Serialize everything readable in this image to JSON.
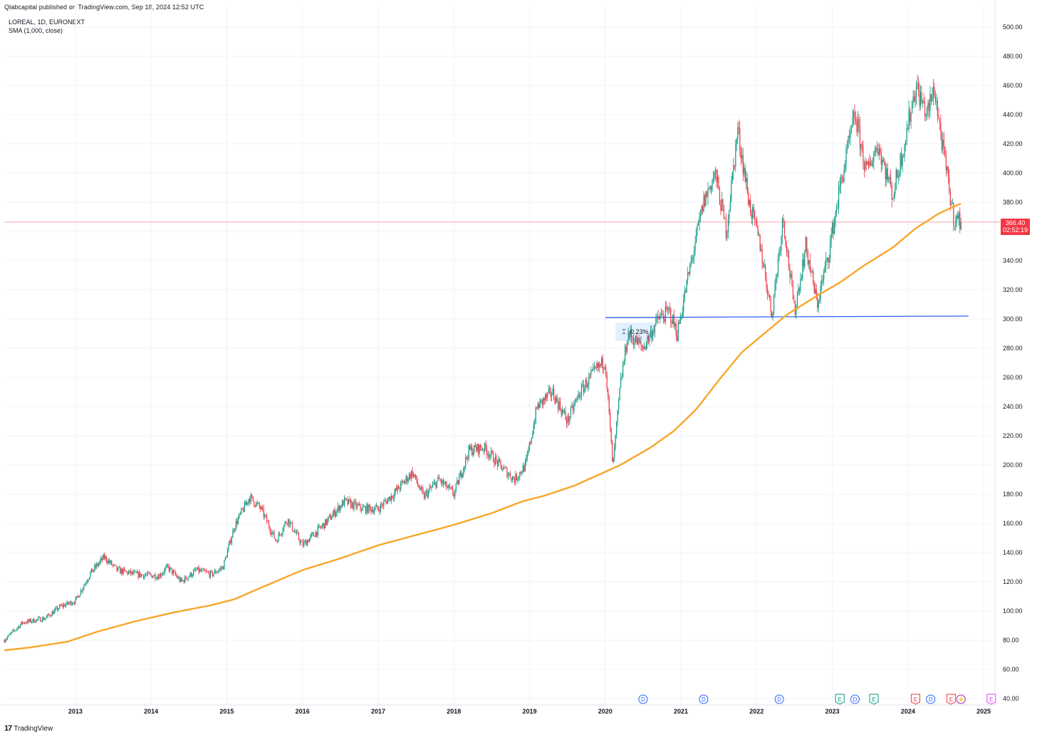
{
  "header": {
    "publish_line": "Qlabcapital published on TradingView.com, Sep 18, 2024 12:52 UTC",
    "symbol_line": "LOREAL, 1D, EURONEXT",
    "indicator_line": "SMA (1,000, close)"
  },
  "brand": {
    "logo": "17",
    "name": "TradingView"
  },
  "price_tag": {
    "price": "366.40",
    "countdown": "02:52:19"
  },
  "measure": {
    "icon": "measure-icon",
    "value": "0.23%"
  },
  "colors": {
    "up": "#089981",
    "down": "#f23645",
    "sma": "#f7a62a",
    "support": "#2962ff",
    "grid": "#f0f3fa",
    "axis_text": "#131722",
    "last_price_line": "#f7a3aa"
  },
  "chart_data": {
    "type": "line",
    "title": "LOREAL, 1D, EURONEXT",
    "xlabel": "",
    "ylabel": "",
    "x_ticks": [
      "2013",
      "2014",
      "2015",
      "2016",
      "2017",
      "2018",
      "2019",
      "2020",
      "2021",
      "2022",
      "2023",
      "2024",
      "2025"
    ],
    "y_ticks": [
      "500.00",
      "480.00",
      "460.00",
      "440.00",
      "420.00",
      "400.00",
      "380.00",
      "360.00",
      "340.00",
      "320.00",
      "300.00",
      "280.00",
      "260.00",
      "240.00",
      "220.00",
      "200.00",
      "180.00",
      "160.00",
      "140.00",
      "120.00",
      "100.00",
      "80.00",
      "60.00",
      "40.00"
    ],
    "xlim": [
      2012.06,
      2025.14
    ],
    "ylim": [
      40,
      510
    ],
    "grid": true,
    "series": [
      {
        "name": "LOREAL close (approx.)",
        "x": [
          2012.06,
          2012.3,
          2012.6,
          2012.8,
          2013.0,
          2013.2,
          2013.38,
          2013.55,
          2013.8,
          2014.1,
          2014.22,
          2014.4,
          2014.6,
          2014.8,
          2014.95,
          2015.1,
          2015.3,
          2015.45,
          2015.65,
          2015.8,
          2016.0,
          2016.3,
          2016.55,
          2016.8,
          2017.0,
          2017.2,
          2017.45,
          2017.6,
          2017.8,
          2018.0,
          2018.2,
          2018.4,
          2018.6,
          2018.8,
          2018.95,
          2019.1,
          2019.3,
          2019.5,
          2019.65,
          2019.8,
          2020.0,
          2020.1,
          2020.2,
          2020.3,
          2020.5,
          2020.7,
          2020.85,
          2020.95,
          2021.1,
          2021.3,
          2021.45,
          2021.6,
          2021.75,
          2021.9,
          2022.05,
          2022.2,
          2022.35,
          2022.5,
          2022.65,
          2022.8,
          2022.95,
          2023.1,
          2023.3,
          2023.45,
          2023.6,
          2023.8,
          2023.95,
          2024.1,
          2024.25,
          2024.35,
          2024.45,
          2024.6,
          2024.7
        ],
        "values": [
          80,
          92,
          95,
          103,
          107,
          126,
          137,
          128,
          125,
          124,
          130,
          120,
          128,
          125,
          130,
          158,
          178,
          170,
          148,
          163,
          145,
          160,
          175,
          170,
          170,
          180,
          195,
          178,
          190,
          180,
          210,
          212,
          200,
          190,
          200,
          240,
          250,
          230,
          248,
          260,
          272,
          198,
          255,
          290,
          280,
          300,
          305,
          290,
          330,
          380,
          400,
          360,
          430,
          380,
          350,
          303,
          370,
          305,
          350,
          310,
          345,
          390,
          440,
          400,
          420,
          385,
          420,
          460,
          440,
          458,
          420,
          370,
          366.4
        ]
      },
      {
        "name": "SMA (1,000, close)",
        "x": [
          2012.06,
          2012.4,
          2012.9,
          2013.3,
          2013.8,
          2014.3,
          2014.8,
          2015.1,
          2015.5,
          2016.0,
          2016.5,
          2017.0,
          2017.5,
          2018.0,
          2018.5,
          2018.9,
          2019.2,
          2019.6,
          2019.9,
          2020.2,
          2020.6,
          2020.9,
          2021.2,
          2021.5,
          2021.8,
          2022.1,
          2022.4,
          2022.8,
          2023.1,
          2023.4,
          2023.8,
          2024.1,
          2024.4,
          2024.6,
          2024.7
        ],
        "values": [
          73,
          75,
          79,
          86,
          93,
          99,
          104,
          108,
          117,
          128,
          136,
          145,
          152,
          159,
          167,
          175,
          179,
          186,
          193,
          200,
          212,
          223,
          238,
          258,
          277,
          290,
          303,
          316,
          325,
          336,
          349,
          362,
          372,
          377,
          379
        ]
      },
      {
        "name": "Support line",
        "x": [
          2020.0,
          2024.8
        ],
        "values": [
          301,
          302
        ]
      }
    ],
    "last_price": 366.4,
    "events": [
      {
        "label": "D",
        "x": 2020.5
      },
      {
        "label": "D",
        "x": 2021.3
      },
      {
        "label": "D",
        "x": 2022.3
      },
      {
        "label": "E",
        "x": 2023.1
      },
      {
        "label": "D",
        "x": 2023.3
      },
      {
        "label": "E",
        "x": 2023.55
      },
      {
        "label": "E",
        "x": 2024.1
      },
      {
        "label": "D",
        "x": 2024.3
      },
      {
        "label": "E",
        "x": 2024.57
      },
      {
        "label": "⚡",
        "x": 2024.7
      },
      {
        "label": "E",
        "x": 2025.1
      }
    ]
  }
}
